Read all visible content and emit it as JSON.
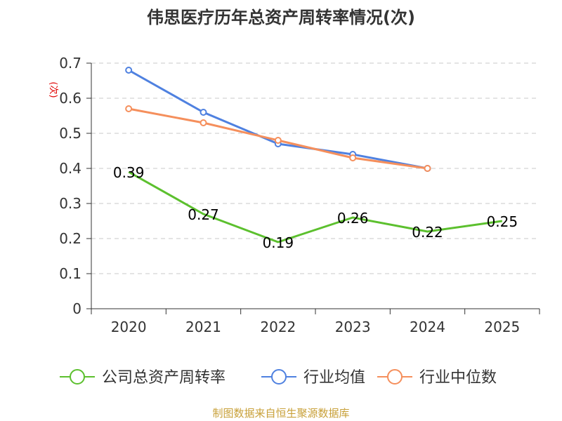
{
  "chart_data": {
    "type": "line",
    "title": "伟思医疗历年总资产周转率情况(次)",
    "ylabel": "(次)",
    "xlabel": "",
    "categories": [
      "2020",
      "2021",
      "2022",
      "2023",
      "2024",
      "2025"
    ],
    "ylim": [
      0,
      0.7
    ],
    "yticks": [
      0,
      0.1,
      0.2,
      0.3,
      0.4,
      0.5,
      0.6,
      0.7
    ],
    "ytick_labels": [
      "0",
      "0.1",
      "0.2",
      "0.3",
      "0.4",
      "0.5",
      "0.6",
      "0.7"
    ],
    "grid": "horizontal dashed",
    "legend_position": "bottom",
    "series": [
      {
        "name": "公司总资产周转率",
        "color": "#5cc02e",
        "values": [
          0.39,
          0.27,
          0.19,
          0.26,
          0.22,
          0.25
        ],
        "data_labels": [
          "0.39",
          "0.27",
          "0.19",
          "0.26",
          "0.22",
          "0.25"
        ],
        "show_markers": false
      },
      {
        "name": "行业均值",
        "color": "#4f81e0",
        "values": [
          0.68,
          0.56,
          0.47,
          0.44,
          0.4,
          null
        ],
        "show_markers": true
      },
      {
        "name": "行业中位数",
        "color": "#f58f5c",
        "values": [
          0.57,
          0.53,
          0.48,
          0.43,
          0.4,
          null
        ],
        "show_markers": true
      }
    ]
  },
  "source_note": "制图数据来自恒生聚源数据库",
  "colors": {
    "title": "#333333",
    "axis": "#333333",
    "grid": "#c8c8c8",
    "ylabel": "#e00000",
    "source": "#c8a038"
  }
}
